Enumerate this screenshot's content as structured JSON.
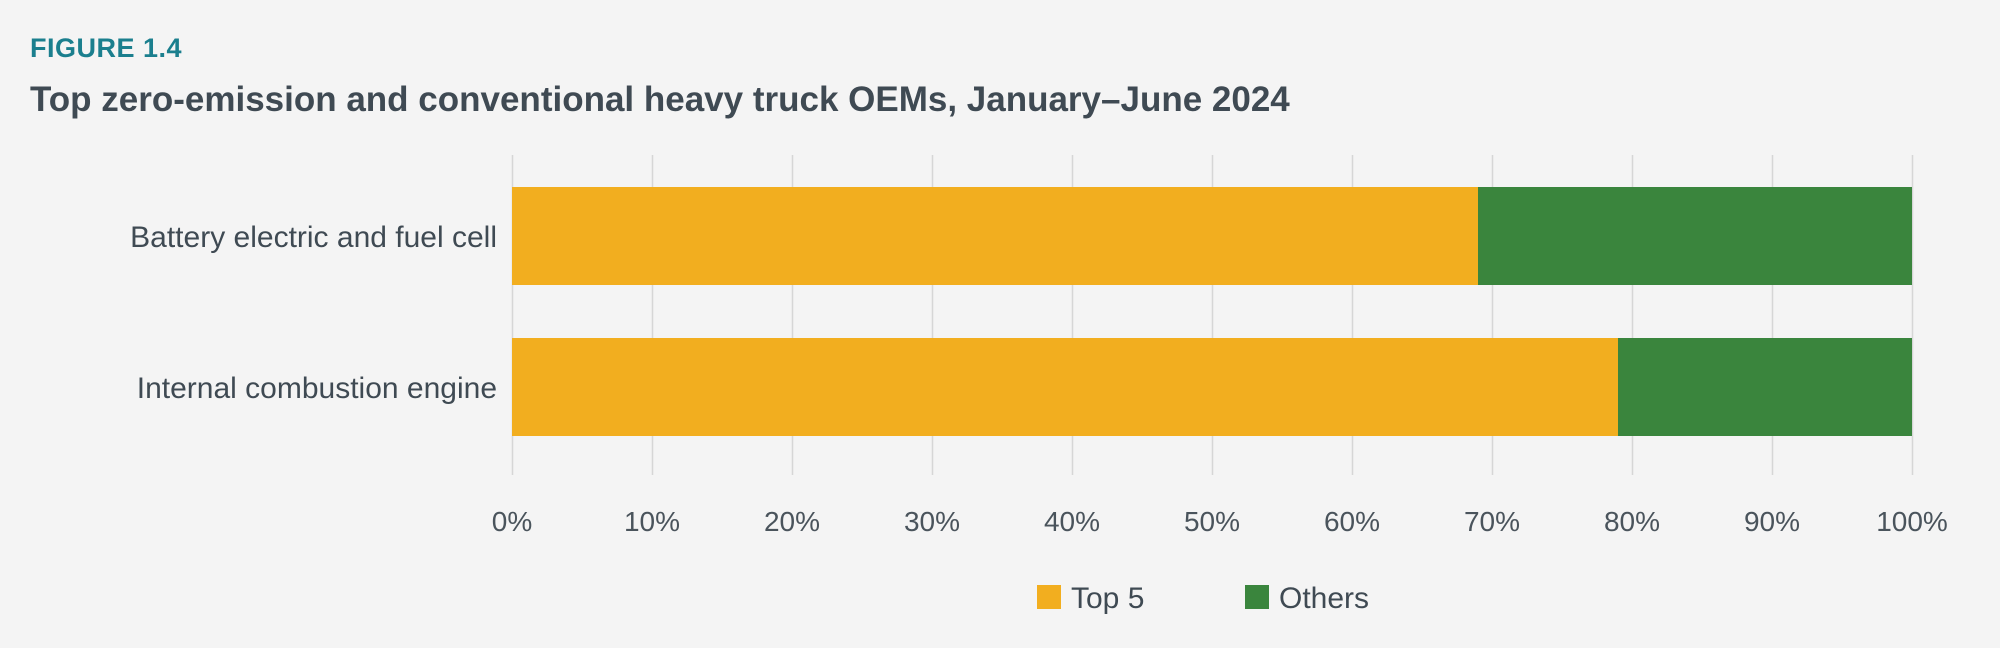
{
  "figure": {
    "label": "FIGURE 1.4",
    "title": "Top zero-emission and conventional heavy truck OEMs, January–June 2024"
  },
  "chart_data": {
    "type": "bar",
    "orientation": "horizontal",
    "stacked": true,
    "categories": [
      "Battery electric and fuel cell",
      "Internal combustion engine"
    ],
    "series": [
      {
        "name": "Top 5",
        "values": [
          69,
          79
        ],
        "color": "#f2ae1f"
      },
      {
        "name": "Others",
        "values": [
          31,
          21
        ],
        "color": "#3a853d"
      }
    ],
    "xlim": [
      0,
      100
    ],
    "xticks": [
      0,
      10,
      20,
      30,
      40,
      50,
      60,
      70,
      80,
      90,
      100
    ],
    "xtick_labels": [
      "0%",
      "10%",
      "20%",
      "30%",
      "40%",
      "50%",
      "60%",
      "70%",
      "80%",
      "90%",
      "100%"
    ],
    "grid": "vertical",
    "legend_position": "bottom"
  }
}
